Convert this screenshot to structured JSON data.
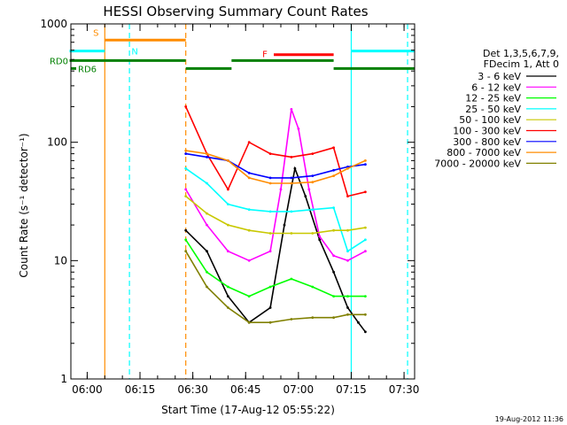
{
  "chart_data": {
    "type": "line",
    "title": "HESSI Observing Summary Count Rates",
    "xlabel": "Start Time (17-Aug-12 05:55:22)",
    "ylabel": "Count Rate (s⁻¹ detector⁻¹)",
    "yscale": "log",
    "ylim": [
      1,
      1000
    ],
    "xlim": [
      "05:55:22",
      "07:33:00"
    ],
    "y_ticks": [
      "1",
      "10",
      "100",
      "1000"
    ],
    "x_ticks": [
      "06:00",
      "06:15",
      "06:30",
      "06:45",
      "07:00",
      "07:15",
      "07:30"
    ],
    "legend_header": [
      "Det 1,3,5,6,7,9,",
      "FDecim 1, Att 0"
    ],
    "legend_position": "right",
    "grid": false,
    "series": [
      {
        "name": "3 - 6 keV",
        "color": "#000000",
        "x": [
          "06:28",
          "06:34",
          "06:40",
          "06:46",
          "06:52",
          "06:56",
          "06:59",
          "07:02",
          "07:06",
          "07:10",
          "07:14",
          "07:17",
          "07:19"
        ],
        "y": [
          18,
          12,
          5,
          3,
          4,
          20,
          60,
          35,
          15,
          8,
          4,
          3,
          2.5
        ]
      },
      {
        "name": "6 - 12 keV",
        "color": "#ff00ff",
        "x": [
          "06:28",
          "06:34",
          "06:40",
          "06:46",
          "06:52",
          "06:55",
          "06:58",
          "07:00",
          "07:03",
          "07:06",
          "07:10",
          "07:14",
          "07:19"
        ],
        "y": [
          40,
          20,
          12,
          10,
          12,
          40,
          190,
          130,
          40,
          16,
          11,
          10,
          12
        ]
      },
      {
        "name": "12 - 25 keV",
        "color": "#00ff00",
        "x": [
          "06:28",
          "06:34",
          "06:40",
          "06:46",
          "06:52",
          "06:58",
          "07:04",
          "07:10",
          "07:14",
          "07:19"
        ],
        "y": [
          15,
          8,
          6,
          5,
          6,
          7,
          6,
          5,
          5,
          5
        ]
      },
      {
        "name": "25 - 50 keV",
        "color": "#00ffff",
        "x": [
          "06:28",
          "06:34",
          "06:40",
          "06:46",
          "06:52",
          "06:58",
          "07:04",
          "07:10",
          "07:14",
          "07:19"
        ],
        "y": [
          60,
          45,
          30,
          27,
          26,
          26,
          27,
          28,
          12,
          15
        ]
      },
      {
        "name": "50 - 100 keV",
        "color": "#c8c800",
        "x": [
          "06:28",
          "06:34",
          "06:40",
          "06:46",
          "06:52",
          "06:58",
          "07:04",
          "07:10",
          "07:14",
          "07:19"
        ],
        "y": [
          35,
          25,
          20,
          18,
          17,
          17,
          17,
          18,
          18,
          19
        ]
      },
      {
        "name": "100 - 300 keV",
        "color": "#ff0000",
        "x": [
          "06:28",
          "06:34",
          "06:40",
          "06:46",
          "06:52",
          "06:58",
          "07:04",
          "07:10",
          "07:14",
          "07:19"
        ],
        "y": [
          200,
          80,
          40,
          100,
          80,
          75,
          80,
          90,
          35,
          38
        ]
      },
      {
        "name": "300 - 800 keV",
        "color": "#0000ff",
        "x": [
          "06:28",
          "06:34",
          "06:40",
          "06:46",
          "06:52",
          "06:58",
          "07:04",
          "07:10",
          "07:14",
          "07:19"
        ],
        "y": [
          80,
          75,
          70,
          55,
          50,
          50,
          52,
          58,
          62,
          65
        ]
      },
      {
        "name": "800 - 7000 keV",
        "color": "#ff8c00",
        "x": [
          "06:28",
          "06:34",
          "06:40",
          "06:46",
          "06:52",
          "06:58",
          "07:04",
          "07:10",
          "07:14",
          "07:19"
        ],
        "y": [
          85,
          80,
          70,
          50,
          45,
          45,
          46,
          52,
          60,
          70
        ]
      },
      {
        "name": "7000 - 20000 keV",
        "color": "#808000",
        "x": [
          "06:28",
          "06:34",
          "06:40",
          "06:46",
          "06:52",
          "06:58",
          "07:04",
          "07:10",
          "07:14",
          "07:19"
        ],
        "y": [
          12,
          6,
          4,
          3,
          3,
          3.2,
          3.3,
          3.3,
          3.5,
          3.5
        ]
      }
    ],
    "bars": [
      {
        "label": "S",
        "color": "#ff8c00",
        "start": "06:05",
        "end": "06:28",
        "level": 730
      },
      {
        "label": "N",
        "color": "#00ffff",
        "start": "05:55",
        "end": "06:05",
        "level": 590
      },
      {
        "label": "",
        "color": "#00ffff",
        "start": "07:15",
        "end": "07:33",
        "level": 590
      },
      {
        "label": "F",
        "color": "#ff0000",
        "start": "06:53",
        "end": "07:10",
        "level": 550
      },
      {
        "label": "RD0",
        "color": "#008000",
        "start": "05:55",
        "end": "06:28",
        "level": 490
      },
      {
        "label": "",
        "color": "#008000",
        "start": "06:28",
        "end": "06:41",
        "level": 420
      },
      {
        "label": "",
        "color": "#008000",
        "start": "06:41",
        "end": "07:10",
        "level": 490
      },
      {
        "label": "",
        "color": "#008000",
        "start": "07:10",
        "end": "07:33",
        "level": 420
      }
    ],
    "rd6_label": "RD6",
    "vlines": [
      {
        "time": "06:05",
        "color": "#ff8c00",
        "style": "solid"
      },
      {
        "time": "06:12",
        "color": "#00ffff",
        "style": "dashed"
      },
      {
        "time": "06:28",
        "color": "#ff8c00",
        "style": "dashed"
      },
      {
        "time": "07:15",
        "color": "#00ffff",
        "style": "solid"
      },
      {
        "time": "07:31",
        "color": "#00ffff",
        "style": "dashed"
      }
    ],
    "footer_date": "19-Aug-2012 11:36"
  }
}
